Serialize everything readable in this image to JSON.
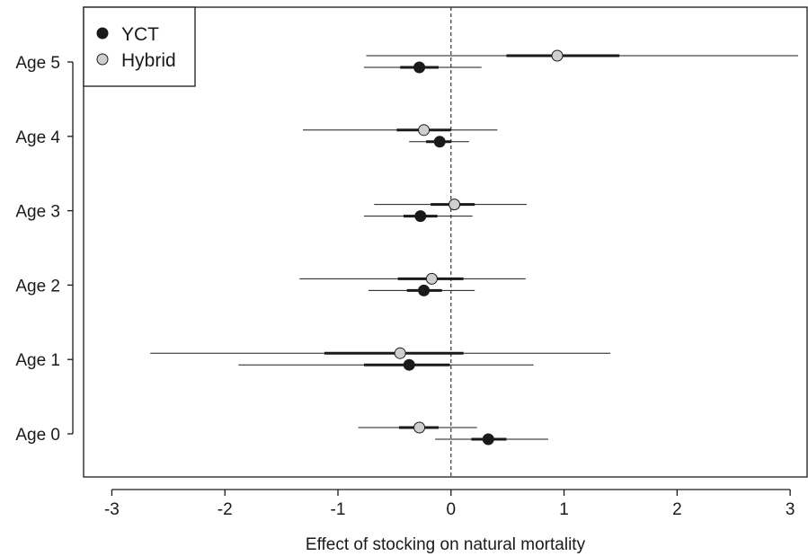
{
  "chart_data": {
    "type": "scatter",
    "title": "",
    "xlabel": "Effect of stocking on natural mortality",
    "ylabel": "",
    "xlim": [
      -3.25,
      3.15
    ],
    "xticks": [
      -3,
      -2,
      -1,
      0,
      1,
      2,
      3
    ],
    "categories": [
      "Age 5",
      "Age 4",
      "Age 3",
      "Age 2",
      "Age 1",
      "Age 0"
    ],
    "reference_line": 0,
    "grid": false,
    "legend_position": "top-left",
    "series": [
      {
        "name": "YCT",
        "color": "#1a1a1a",
        "points": [
          {
            "category": "Age 5",
            "estimate": -0.28,
            "ci50": [
              -0.45,
              -0.11
            ],
            "ci95": [
              -0.77,
              0.27
            ]
          },
          {
            "category": "Age 4",
            "estimate": -0.1,
            "ci50": [
              -0.22,
              0.0
            ],
            "ci95": [
              -0.37,
              0.16
            ]
          },
          {
            "category": "Age 3",
            "estimate": -0.27,
            "ci50": [
              -0.42,
              -0.12
            ],
            "ci95": [
              -0.77,
              0.19
            ]
          },
          {
            "category": "Age 2",
            "estimate": -0.24,
            "ci50": [
              -0.39,
              -0.08
            ],
            "ci95": [
              -0.73,
              0.21
            ]
          },
          {
            "category": "Age 1",
            "estimate": -0.37,
            "ci50": [
              -0.77,
              -0.01
            ],
            "ci95": [
              -1.88,
              0.73
            ]
          },
          {
            "category": "Age 0",
            "estimate": 0.33,
            "ci50": [
              0.18,
              0.49
            ],
            "ci95": [
              -0.14,
              0.86
            ]
          }
        ]
      },
      {
        "name": "Hybrid",
        "color": "#cfcfcf",
        "points": [
          {
            "category": "Age 5",
            "estimate": 0.94,
            "ci50": [
              0.49,
              1.49
            ],
            "ci95": [
              -0.75,
              3.07
            ]
          },
          {
            "category": "Age 4",
            "estimate": -0.24,
            "ci50": [
              -0.48,
              0.0
            ],
            "ci95": [
              -1.31,
              0.41
            ]
          },
          {
            "category": "Age 3",
            "estimate": 0.03,
            "ci50": [
              -0.18,
              0.21
            ],
            "ci95": [
              -0.68,
              0.67
            ]
          },
          {
            "category": "Age 2",
            "estimate": -0.17,
            "ci50": [
              -0.47,
              0.11
            ],
            "ci95": [
              -1.34,
              0.66
            ]
          },
          {
            "category": "Age 1",
            "estimate": -0.45,
            "ci50": [
              -1.12,
              0.11
            ],
            "ci95": [
              -2.66,
              1.41
            ]
          },
          {
            "category": "Age 0",
            "estimate": -0.28,
            "ci50": [
              -0.46,
              -0.11
            ],
            "ci95": [
              -0.82,
              0.23
            ]
          }
        ]
      }
    ]
  }
}
